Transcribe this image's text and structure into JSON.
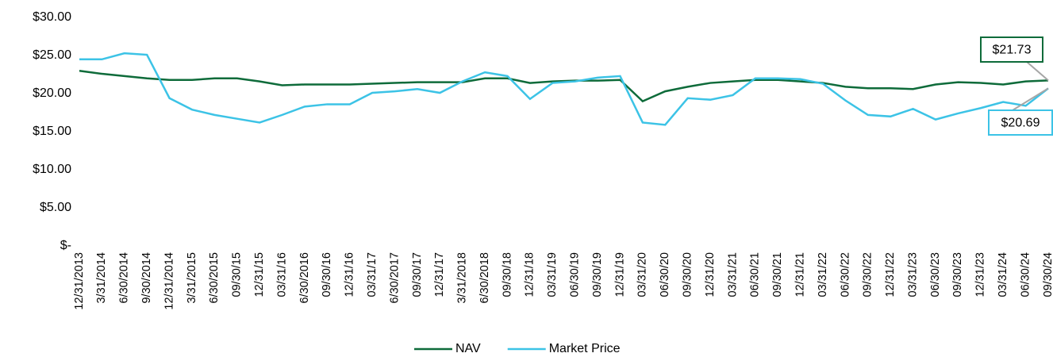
{
  "chart_data": {
    "type": "line",
    "categories": [
      "12/31/2013",
      "3/31/2014",
      "6/30/2014",
      "9/30/2014",
      "12/31/2014",
      "3/31/2015",
      "6/30/2015",
      "09/30/15",
      "12/31/15",
      "03/31/16",
      "6/30/2016",
      "09/30/16",
      "12/31/16",
      "03/31/17",
      "6/30/2017",
      "09/30/17",
      "12/31/17",
      "3/31/2018",
      "6/30/2018",
      "09/30/18",
      "12/31/18",
      "03/31/19",
      "06/30/19",
      "09/30/19",
      "12/31/19",
      "03/31/20",
      "06/30/20",
      "09/30/20",
      "12/31/20",
      "03/31/21",
      "06/30/21",
      "09/30/21",
      "12/31/21",
      "03/31/22",
      "06/30/22",
      "09/30/22",
      "12/31/22",
      "03/31/23",
      "06/30/23",
      "09/30/23",
      "12/31/23",
      "03/31/24",
      "06/30/24",
      "09/30/24"
    ],
    "series": [
      {
        "name": "NAV",
        "color": "#0e6b3a",
        "end_label": "$21.73",
        "values": [
          23.0,
          22.6,
          22.3,
          22.0,
          21.8,
          21.8,
          22.0,
          22.0,
          21.6,
          21.1,
          21.2,
          21.2,
          21.2,
          21.3,
          21.4,
          21.5,
          21.5,
          21.5,
          22.0,
          22.0,
          21.4,
          21.6,
          21.7,
          21.7,
          21.8,
          19.0,
          20.3,
          20.9,
          21.4,
          21.6,
          21.8,
          21.8,
          21.6,
          21.4,
          20.9,
          20.7,
          20.7,
          20.6,
          21.2,
          21.5,
          21.4,
          21.2,
          21.6,
          21.73
        ]
      },
      {
        "name": "Market Price",
        "color": "#3cc3e6",
        "end_label": "$20.69",
        "values": [
          24.5,
          24.5,
          25.3,
          25.1,
          19.4,
          17.9,
          17.2,
          16.7,
          16.2,
          17.2,
          18.3,
          18.6,
          18.6,
          20.1,
          20.3,
          20.6,
          20.1,
          21.6,
          22.8,
          22.3,
          19.3,
          21.4,
          21.6,
          22.1,
          22.3,
          16.2,
          15.9,
          19.4,
          19.2,
          19.8,
          22.0,
          22.0,
          21.9,
          21.3,
          19.1,
          17.2,
          17.0,
          18.0,
          16.6,
          17.4,
          18.1,
          18.9,
          18.4,
          20.69
        ]
      }
    ],
    "ylim": [
      0,
      30
    ],
    "yticks": [
      {
        "value": 0,
        "label": "$-"
      },
      {
        "value": 5,
        "label": "$5.00"
      },
      {
        "value": 10,
        "label": "$10.00"
      },
      {
        "value": 15,
        "label": "$15.00"
      },
      {
        "value": 20,
        "label": "$20.00"
      },
      {
        "value": 25,
        "label": "$25.00"
      },
      {
        "value": 30,
        "label": "$30.00"
      }
    ],
    "legend": "bottom"
  }
}
